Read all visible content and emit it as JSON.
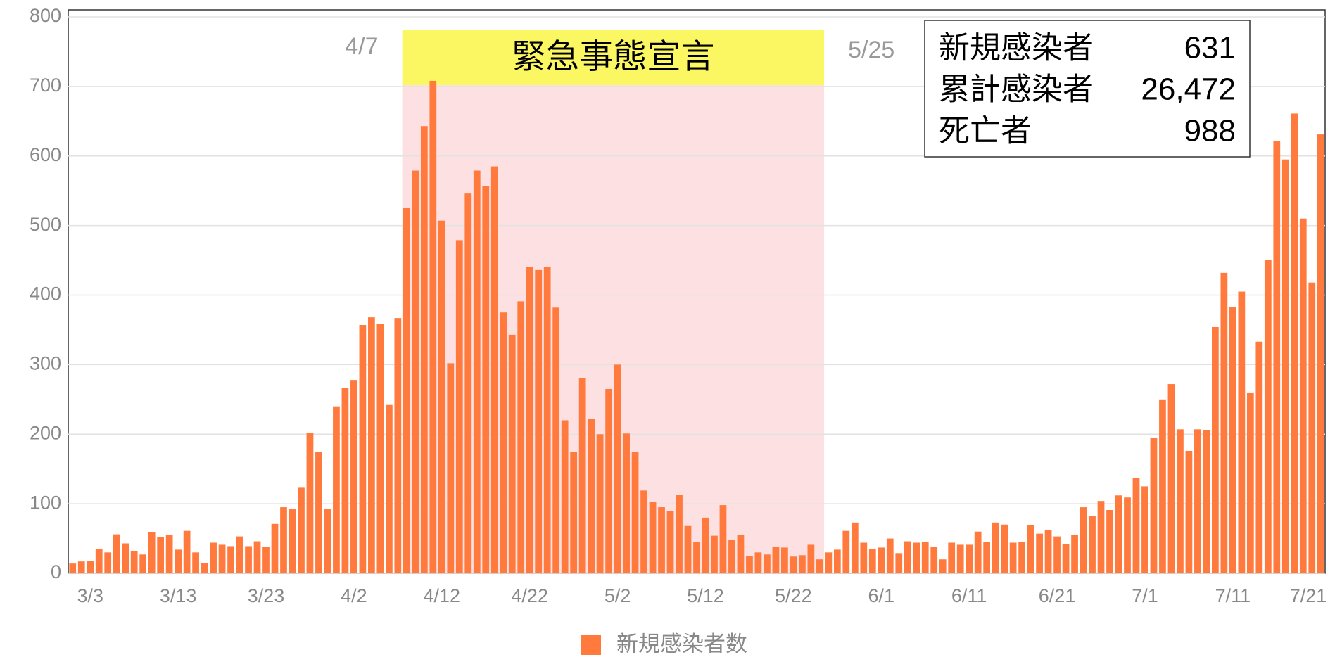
{
  "chart_data": {
    "type": "bar",
    "categories": [
      null,
      null,
      "3/3",
      null,
      null,
      null,
      null,
      null,
      null,
      null,
      null,
      null,
      "3/13",
      null,
      null,
      null,
      null,
      null,
      null,
      null,
      null,
      null,
      "3/23",
      null,
      null,
      null,
      null,
      null,
      null,
      null,
      null,
      null,
      "4/2",
      null,
      null,
      null,
      null,
      null,
      null,
      null,
      null,
      null,
      "4/12",
      null,
      null,
      null,
      null,
      null,
      null,
      null,
      null,
      null,
      "4/22",
      null,
      null,
      null,
      null,
      null,
      null,
      null,
      null,
      null,
      "5/2",
      null,
      null,
      null,
      null,
      null,
      null,
      null,
      null,
      null,
      "5/12",
      null,
      null,
      null,
      null,
      null,
      null,
      null,
      null,
      null,
      "5/22",
      null,
      null,
      null,
      null,
      null,
      null,
      null,
      null,
      null,
      "6/1",
      null,
      null,
      null,
      null,
      null,
      null,
      null,
      null,
      null,
      "6/11",
      null,
      null,
      null,
      null,
      null,
      null,
      null,
      null,
      null,
      "6/21",
      null,
      null,
      null,
      null,
      null,
      null,
      null,
      null,
      null,
      "7/1",
      null,
      null,
      null,
      null,
      null,
      null,
      null,
      null,
      null,
      "7/11",
      null,
      null,
      null,
      null,
      null,
      null,
      null,
      null,
      null,
      "7/21"
    ],
    "series": [
      {
        "name": "新規感染者数",
        "color": "#ff7a3c",
        "values": [
          14,
          17,
          18,
          35,
          30,
          56,
          43,
          32,
          27,
          59,
          52,
          55,
          34,
          61,
          30,
          15,
          44,
          41,
          39,
          53,
          39,
          46,
          38,
          71,
          95,
          92,
          123,
          202,
          174,
          92,
          240,
          267,
          278,
          357,
          368,
          359,
          242,
          367,
          525,
          579,
          643,
          708,
          507,
          302,
          479,
          546,
          579,
          557,
          585,
          375,
          343,
          391,
          440,
          436,
          440,
          382,
          220,
          174,
          281,
          222,
          200,
          265,
          300,
          201,
          174,
          119,
          103,
          95,
          89,
          113,
          68,
          45,
          80,
          54,
          98,
          48,
          55,
          25,
          30,
          27,
          38,
          37,
          24,
          26,
          41,
          20,
          30,
          34,
          61,
          73,
          44,
          35,
          37,
          50,
          29,
          46,
          44,
          45,
          38,
          20,
          44,
          41,
          41,
          60,
          45,
          73,
          70,
          44,
          45,
          69,
          57,
          62,
          53,
          42,
          55,
          95,
          82,
          104,
          91,
          112,
          109,
          137,
          125,
          195,
          250,
          272,
          207,
          176,
          207,
          206,
          354,
          432,
          383,
          405,
          260,
          333,
          451,
          621,
          595,
          661,
          510,
          418,
          631
        ]
      }
    ],
    "ylim": [
      0,
      800
    ],
    "yticks": [
      0,
      100,
      200,
      300,
      400,
      500,
      600,
      700,
      800
    ],
    "grid": true,
    "legend": "bottom",
    "shade": {
      "start": "4/7",
      "end": "5/25",
      "label": "緊急事態宣言"
    },
    "info_box": [
      {
        "label": "新規感染者",
        "value": "631"
      },
      {
        "label": "累計感染者",
        "value": "26,472"
      },
      {
        "label": "死亡者",
        "value": "988"
      }
    ]
  }
}
